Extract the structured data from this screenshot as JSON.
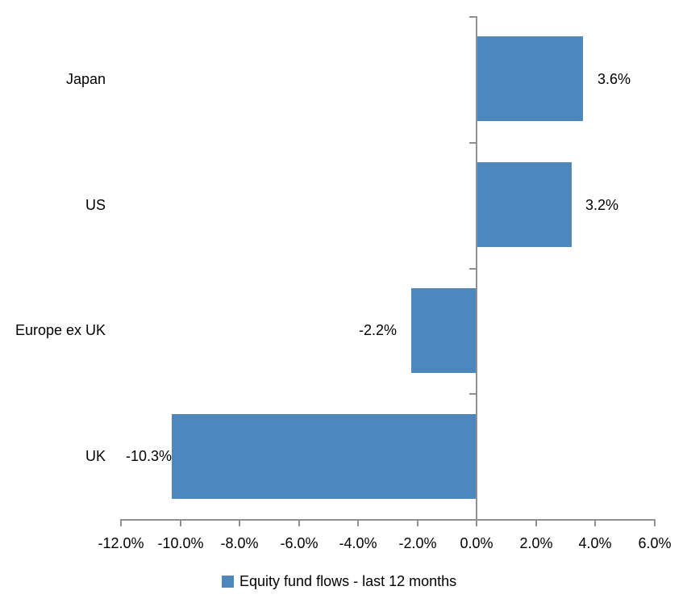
{
  "chart_data": {
    "type": "bar",
    "orientation": "horizontal",
    "categories": [
      "Japan",
      "US",
      "Europe ex UK",
      "UK"
    ],
    "series": [
      {
        "name": "Equity fund flows - last 12 months",
        "values": [
          3.6,
          3.2,
          -2.2,
          -10.3
        ]
      }
    ],
    "values": [
      3.6,
      3.2,
      -2.2,
      -10.3
    ],
    "data_labels": [
      "3.6%",
      "3.2%",
      "-2.2%",
      "-10.3%"
    ],
    "x_axis": {
      "range": [
        -12,
        6
      ],
      "tick_values": [
        -12,
        -10,
        -8,
        -6,
        -4,
        -2,
        0,
        2,
        4,
        6
      ],
      "tick_labels": [
        "-12.0%",
        "-10.0%",
        "-8.0%",
        "-6.0%",
        "-4.0%",
        "-2.0%",
        "0.0%",
        "2.0%",
        "4.0%",
        "6.0%"
      ]
    },
    "legend": {
      "label": "Equity fund flows - last 12 months",
      "position": "bottom"
    },
    "colors": {
      "bar": "#4E86BE",
      "axis": "#8F8F8F",
      "text": "#000000"
    },
    "grid": false
  }
}
